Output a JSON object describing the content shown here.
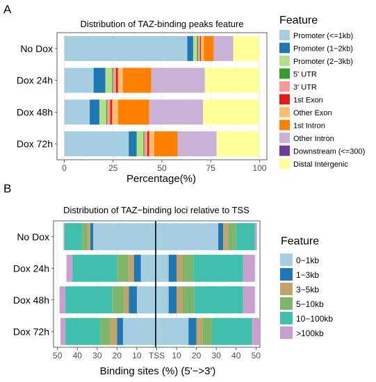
{
  "chart_data": [
    {
      "panel_label": "A",
      "type": "bar",
      "stacked": true,
      "orientation": "horizontal",
      "title": "Distribution of TAZ-binding peaks feature",
      "xlabel": "Percentage(%)",
      "ylabel": "",
      "xlim": [
        0,
        100
      ],
      "xticks": [
        "0",
        "25",
        "50",
        "75",
        "100"
      ],
      "categories": [
        "No Dox",
        "Dox 24h",
        "Dox 48h",
        "Dox 72h"
      ],
      "grid": true,
      "legend": {
        "title": "Feature",
        "position": "right"
      },
      "series": [
        {
          "name": "Promoter (<=1kb)",
          "color": "#a6cee3",
          "values": [
            63.0,
            15.0,
            13.0,
            33.0
          ]
        },
        {
          "name": "Promoter (1−2kb)",
          "color": "#1f78b4",
          "values": [
            3.0,
            6.0,
            5.0,
            4.0
          ]
        },
        {
          "name": "Promoter (2−3kb)",
          "color": "#b2df8a",
          "values": [
            2.0,
            3.5,
            3.5,
            3.5
          ]
        },
        {
          "name": "5' UTR",
          "color": "#33a02c",
          "values": [
            0.5,
            0.5,
            0.5,
            0.5
          ]
        },
        {
          "name": "3' UTR",
          "color": "#fb9a99",
          "values": [
            1.0,
            1.5,
            1.5,
            1.5
          ]
        },
        {
          "name": "1st Exon",
          "color": "#e31a1c",
          "values": [
            0.5,
            1.0,
            1.0,
            1.0
          ]
        },
        {
          "name": "Other Exon",
          "color": "#fdbf6f",
          "values": [
            1.5,
            2.5,
            3.0,
            2.5
          ]
        },
        {
          "name": "1st Intron",
          "color": "#ff7f00",
          "values": [
            5.0,
            14.5,
            16.0,
            12.0
          ]
        },
        {
          "name": "Other Intron",
          "color": "#cab2d6",
          "values": [
            10.0,
            27.5,
            27.5,
            20.0
          ]
        },
        {
          "name": "Downstream (<=300)",
          "color": "#6a3d9a",
          "values": [
            0.0,
            0.0,
            0.0,
            0.0
          ]
        },
        {
          "name": "Distal Intergenic",
          "color": "#ffff99",
          "values": [
            13.5,
            28.0,
            29.0,
            22.0
          ]
        }
      ]
    },
    {
      "panel_label": "B",
      "type": "bar",
      "stacked": true,
      "orientation": "horizontal",
      "diverging": true,
      "title": "Distribution of TAZ−binding loci relative to TSS",
      "xlabel": "Binding sites (%) (5'−>3')",
      "ylabel": "",
      "xlim": [
        -52,
        52
      ],
      "xticks": [
        "50",
        "40",
        "30",
        "20",
        "10",
        "TSS",
        "10",
        "20",
        "30",
        "40",
        "50"
      ],
      "categories": [
        "No Dox",
        "Dox 24h",
        "Dox 48h",
        "Dox 72h"
      ],
      "grid": true,
      "legend": {
        "title": "Feature",
        "position": "right"
      },
      "series": [
        {
          "name": "0−1kb",
          "color": "#a6cee3",
          "upstream": [
            32.0,
            8.0,
            10.0,
            17.0
          ],
          "downstream": [
            31.0,
            6.0,
            6.0,
            16.0
          ]
        },
        {
          "name": "1−3kb",
          "color": "#1f78b4",
          "upstream": [
            1.5,
            3.5,
            4.0,
            3.0
          ],
          "downstream": [
            2.5,
            4.0,
            4.0,
            4.0
          ]
        },
        {
          "name": "3−5kb",
          "color": "#c2a36b",
          "upstream": [
            1.5,
            3.0,
            2.5,
            3.5
          ],
          "downstream": [
            2.5,
            3.0,
            3.0,
            3.0
          ]
        },
        {
          "name": "5−10kb",
          "color": "#7fb56b",
          "upstream": [
            2.5,
            5.5,
            6.0,
            5.0
          ],
          "downstream": [
            4.0,
            5.5,
            6.0,
            5.0
          ]
        },
        {
          "name": "10−100kb",
          "color": "#40bfad",
          "upstream": [
            9.0,
            22.5,
            23.5,
            17.5
          ],
          "downstream": [
            9.5,
            25.0,
            24.5,
            20.0
          ]
        },
        {
          "name": ">100kb",
          "color": "#c89fcf",
          "upstream": [
            0.5,
            3.0,
            3.0,
            2.5
          ],
          "downstream": [
            1.0,
            6.0,
            6.0,
            4.0
          ]
        }
      ]
    }
  ]
}
